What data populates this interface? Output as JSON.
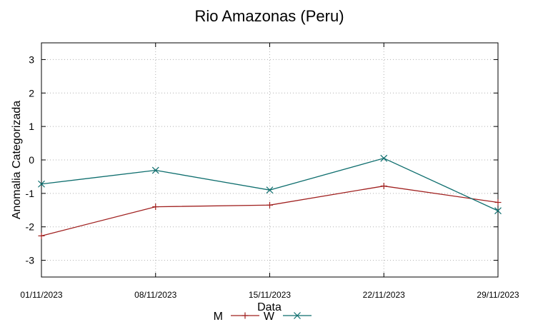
{
  "chart_data": {
    "type": "line",
    "title": "Rio Amazonas (Peru)",
    "xlabel": "Data",
    "ylabel": "Anomalia Categorizada",
    "categories": [
      "01/11/2023",
      "08/11/2023",
      "15/11/2023",
      "22/11/2023",
      "29/11/2023"
    ],
    "ylim": [
      -3.5,
      3.5
    ],
    "yticks": [
      -3,
      -2,
      -1,
      0,
      1,
      2,
      3
    ],
    "grid": true,
    "legend_position": "bottom-center",
    "series": [
      {
        "name": "M",
        "color": "#a0201f",
        "marker": "plus",
        "values": [
          -2.27,
          -1.4,
          -1.35,
          -0.78,
          -1.27
        ]
      },
      {
        "name": "W",
        "color": "#0e6e6e",
        "marker": "cross",
        "values": [
          -0.72,
          -0.31,
          -0.9,
          0.05,
          -1.52
        ]
      }
    ]
  }
}
